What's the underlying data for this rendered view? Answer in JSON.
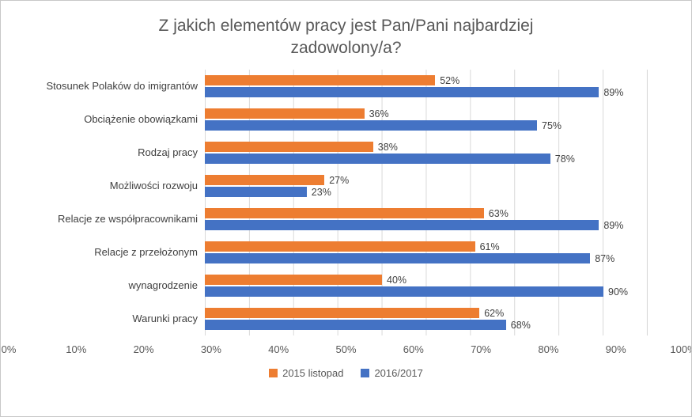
{
  "chart_data": {
    "type": "bar",
    "orientation": "horizontal",
    "title": "Z jakich elementów pracy jest Pan/Pani najbardziej zadowolony/a?",
    "categories": [
      "Stosunek Polaków do imigrantów",
      "Obciążenie obowiązkami",
      "Rodzaj pracy",
      "Możliwości rozwoju",
      "Relacje ze współpracownikami",
      "Relacje z przełożonym",
      "wynagrodzenie",
      "Warunki pracy"
    ],
    "series": [
      {
        "name": "2015 listopad",
        "color": "#ED7D31",
        "values": [
          52,
          36,
          38,
          27,
          63,
          61,
          40,
          62
        ]
      },
      {
        "name": "2016/2017",
        "color": "#4472C4",
        "values": [
          89,
          75,
          78,
          23,
          89,
          87,
          90,
          68
        ]
      }
    ],
    "xlim": [
      0,
      100
    ],
    "x_ticks": [
      "0%",
      "10%",
      "20%",
      "30%",
      "40%",
      "50%",
      "60%",
      "70%",
      "80%",
      "90%",
      "100%"
    ],
    "value_label_suffix": "%",
    "grid": "vertical",
    "gridline_color": "#D9D9D9",
    "legend_position": "bottom"
  }
}
